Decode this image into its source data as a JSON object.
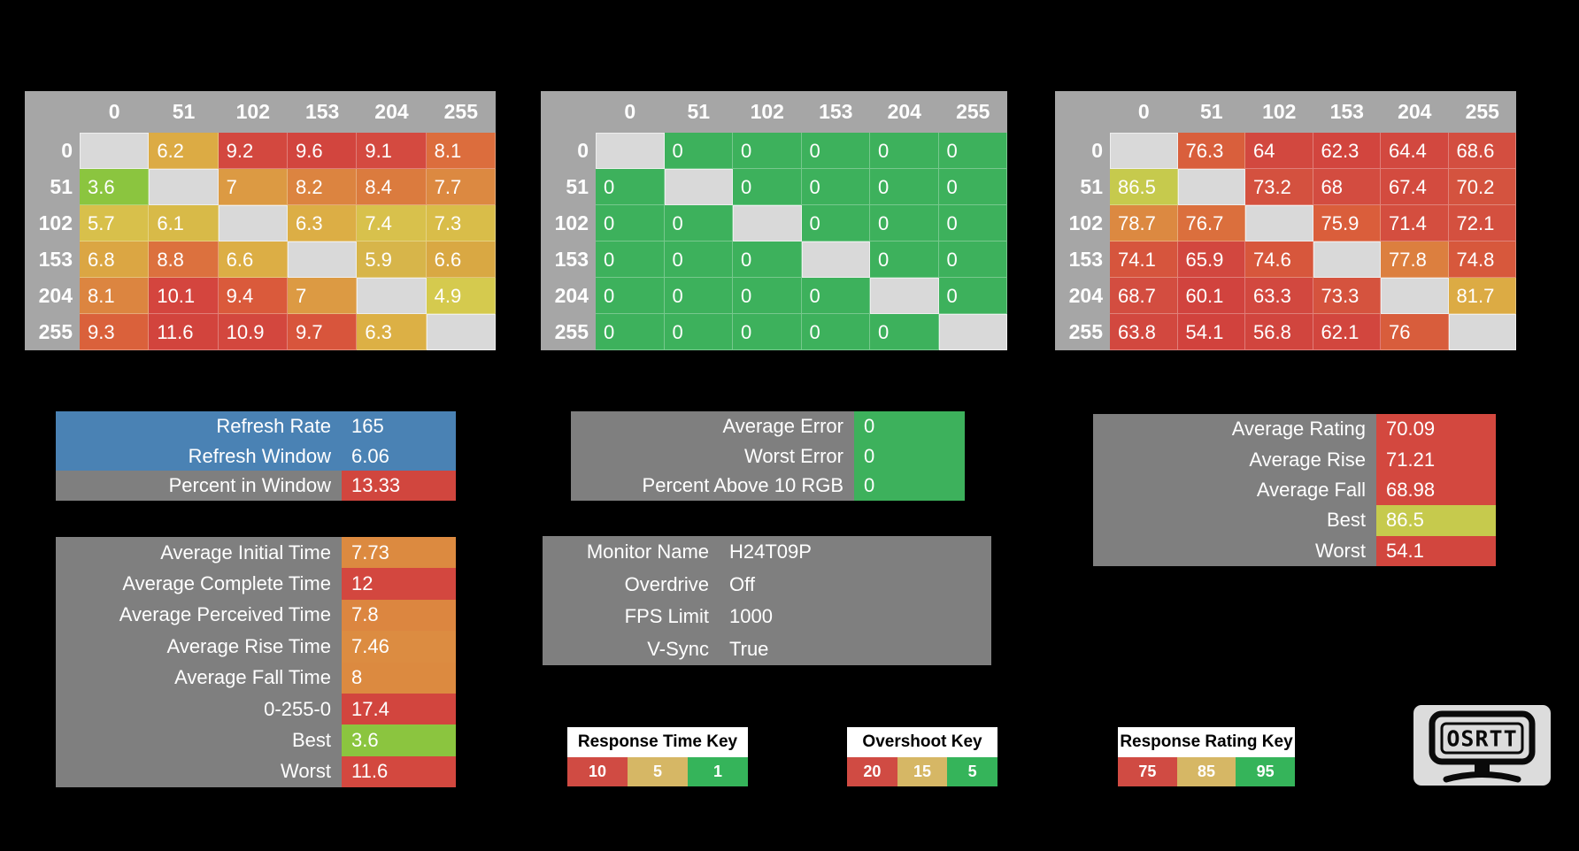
{
  "colors": {
    "background": "#000000",
    "table_surround": "#a6a6a6",
    "diagonal_cell": "#d9d9d9",
    "panel_gray": "#7f7f7f",
    "refresh_blue": "#4a82b4",
    "good_green": "#3db15c",
    "bad_red": "#d1463e",
    "key_red": "#d04b43",
    "key_tan": "#d6b765",
    "key_green": "#35b45a"
  },
  "heatmaps": [
    {
      "id": "response-times",
      "col_headers": [
        "0",
        "51",
        "102",
        "153",
        "204",
        "255"
      ],
      "rows": [
        {
          "label": "0",
          "cells": [
            {
              "v": "",
              "bg": null
            },
            {
              "v": "6.2",
              "bg": "#dcab44"
            },
            {
              "v": "9.2",
              "bg": "#d3483f"
            },
            {
              "v": "9.6",
              "bg": "#d2453e"
            },
            {
              "v": "9.1",
              "bg": "#d44a40"
            },
            {
              "v": "8.1",
              "bg": "#dc6d3d"
            }
          ]
        },
        {
          "label": "51",
          "cells": [
            {
              "v": "3.6",
              "bg": "#8bc53f"
            },
            {
              "v": "",
              "bg": null
            },
            {
              "v": "7",
              "bg": "#dc9a43"
            },
            {
              "v": "8.2",
              "bg": "#dc8440"
            },
            {
              "v": "8.4",
              "bg": "#db7b3e"
            },
            {
              "v": "7.7",
              "bg": "#dc8941"
            }
          ]
        },
        {
          "label": "102",
          "cells": [
            {
              "v": "5.7",
              "bg": "#d8c04b"
            },
            {
              "v": "6.1",
              "bg": "#d8ba48"
            },
            {
              "v": "",
              "bg": null
            },
            {
              "v": "6.3",
              "bg": "#dcae45"
            },
            {
              "v": "7.4",
              "bg": "#d8c14c"
            },
            {
              "v": "7.3",
              "bg": "#d9bd49"
            }
          ]
        },
        {
          "label": "153",
          "cells": [
            {
              "v": "6.8",
              "bg": "#dba643"
            },
            {
              "v": "8.8",
              "bg": "#dc713e"
            },
            {
              "v": "6.6",
              "bg": "#dcae45"
            },
            {
              "v": "",
              "bg": null
            },
            {
              "v": "5.9",
              "bg": "#d7b54a"
            },
            {
              "v": "6.6",
              "bg": "#d9a843"
            }
          ]
        },
        {
          "label": "204",
          "cells": [
            {
              "v": "8.1",
              "bg": "#dc8540"
            },
            {
              "v": "10.1",
              "bg": "#d4453e"
            },
            {
              "v": "9.4",
              "bg": "#da5a3b"
            },
            {
              "v": "7",
              "bg": "#dc9a43"
            },
            {
              "v": "",
              "bg": null
            },
            {
              "v": "4.9",
              "bg": "#d5ca4e"
            }
          ]
        },
        {
          "label": "255",
          "cells": [
            {
              "v": "9.3",
              "bg": "#da613b"
            },
            {
              "v": "11.6",
              "bg": "#d2443d"
            },
            {
              "v": "10.9",
              "bg": "#d3473e"
            },
            {
              "v": "9.7",
              "bg": "#d8553c"
            },
            {
              "v": "6.3",
              "bg": "#dcb045"
            },
            {
              "v": "",
              "bg": null
            }
          ]
        }
      ]
    },
    {
      "id": "overshoot",
      "col_headers": [
        "0",
        "51",
        "102",
        "153",
        "204",
        "255"
      ],
      "rows": [
        {
          "label": "0",
          "cells": [
            {
              "v": "",
              "bg": null
            },
            {
              "v": "0",
              "bg": "#3db15c"
            },
            {
              "v": "0",
              "bg": "#3db15c"
            },
            {
              "v": "0",
              "bg": "#3db15c"
            },
            {
              "v": "0",
              "bg": "#3db15c"
            },
            {
              "v": "0",
              "bg": "#3db15c"
            }
          ]
        },
        {
          "label": "51",
          "cells": [
            {
              "v": "0",
              "bg": "#3db15c"
            },
            {
              "v": "",
              "bg": null
            },
            {
              "v": "0",
              "bg": "#3db15c"
            },
            {
              "v": "0",
              "bg": "#3db15c"
            },
            {
              "v": "0",
              "bg": "#3db15c"
            },
            {
              "v": "0",
              "bg": "#3db15c"
            }
          ]
        },
        {
          "label": "102",
          "cells": [
            {
              "v": "0",
              "bg": "#3db15c"
            },
            {
              "v": "0",
              "bg": "#3db15c"
            },
            {
              "v": "",
              "bg": null
            },
            {
              "v": "0",
              "bg": "#3db15c"
            },
            {
              "v": "0",
              "bg": "#3db15c"
            },
            {
              "v": "0",
              "bg": "#3db15c"
            }
          ]
        },
        {
          "label": "153",
          "cells": [
            {
              "v": "0",
              "bg": "#3db15c"
            },
            {
              "v": "0",
              "bg": "#3db15c"
            },
            {
              "v": "0",
              "bg": "#3db15c"
            },
            {
              "v": "",
              "bg": null
            },
            {
              "v": "0",
              "bg": "#3db15c"
            },
            {
              "v": "0",
              "bg": "#3db15c"
            }
          ]
        },
        {
          "label": "204",
          "cells": [
            {
              "v": "0",
              "bg": "#3db15c"
            },
            {
              "v": "0",
              "bg": "#3db15c"
            },
            {
              "v": "0",
              "bg": "#3db15c"
            },
            {
              "v": "0",
              "bg": "#3db15c"
            },
            {
              "v": "",
              "bg": null
            },
            {
              "v": "0",
              "bg": "#3db15c"
            }
          ]
        },
        {
          "label": "255",
          "cells": [
            {
              "v": "0",
              "bg": "#3db15c"
            },
            {
              "v": "0",
              "bg": "#3db15c"
            },
            {
              "v": "0",
              "bg": "#3db15c"
            },
            {
              "v": "0",
              "bg": "#3db15c"
            },
            {
              "v": "0",
              "bg": "#3db15c"
            },
            {
              "v": "",
              "bg": null
            }
          ]
        }
      ]
    },
    {
      "id": "response-rating",
      "col_headers": [
        "0",
        "51",
        "102",
        "153",
        "204",
        "255"
      ],
      "rows": [
        {
          "label": "0",
          "cells": [
            {
              "v": "",
              "bg": null
            },
            {
              "v": "76.3",
              "bg": "#d95f3c"
            },
            {
              "v": "64",
              "bg": "#d2483f"
            },
            {
              "v": "62.3",
              "bg": "#d2453e"
            },
            {
              "v": "64.4",
              "bg": "#d2483f"
            },
            {
              "v": "68.6",
              "bg": "#d34e40"
            }
          ]
        },
        {
          "label": "51",
          "cells": [
            {
              "v": "86.5",
              "bg": "#c6ca4d"
            },
            {
              "v": "",
              "bg": null
            },
            {
              "v": "73.2",
              "bg": "#d4513f"
            },
            {
              "v": "68",
              "bg": "#d34c40"
            },
            {
              "v": "67.4",
              "bg": "#d34b3f"
            },
            {
              "v": "70.2",
              "bg": "#d4533f"
            }
          ]
        },
        {
          "label": "102",
          "cells": [
            {
              "v": "78.7",
              "bg": "#dc8941"
            },
            {
              "v": "76.7",
              "bg": "#db6f3d"
            },
            {
              "v": "",
              "bg": null
            },
            {
              "v": "75.9",
              "bg": "#da5e3b"
            },
            {
              "v": "71.4",
              "bg": "#d44e3f"
            },
            {
              "v": "72.1",
              "bg": "#d4503f"
            }
          ]
        },
        {
          "label": "153",
          "cells": [
            {
              "v": "74.1",
              "bg": "#d6553d"
            },
            {
              "v": "65.9",
              "bg": "#d2473f"
            },
            {
              "v": "74.6",
              "bg": "#d7573c"
            },
            {
              "v": "",
              "bg": null
            },
            {
              "v": "77.8",
              "bg": "#dc7f3f"
            },
            {
              "v": "74.8",
              "bg": "#d7583c"
            }
          ]
        },
        {
          "label": "204",
          "cells": [
            {
              "v": "68.7",
              "bg": "#d34d40"
            },
            {
              "v": "60.1",
              "bg": "#d1433e"
            },
            {
              "v": "63.3",
              "bg": "#d2483f"
            },
            {
              "v": "73.3",
              "bg": "#d5533e"
            },
            {
              "v": "",
              "bg": null
            },
            {
              "v": "81.7",
              "bg": "#dcab44"
            }
          ]
        },
        {
          "label": "255",
          "cells": [
            {
              "v": "63.8",
              "bg": "#d2483f"
            },
            {
              "v": "54.1",
              "bg": "#d1423d"
            },
            {
              "v": "56.8",
              "bg": "#d1453e"
            },
            {
              "v": "62.1",
              "bg": "#d2463e"
            },
            {
              "v": "76",
              "bg": "#d85d3c"
            },
            {
              "v": "",
              "bg": null
            }
          ]
        }
      ]
    }
  ],
  "panels": [
    {
      "id": "panel-refresh",
      "rows": [
        {
          "label": "Refresh Rate",
          "value": "165",
          "row_bg": "#4a82b4",
          "value_bg": null
        },
        {
          "label": "Refresh Window",
          "value": "6.06",
          "row_bg": "#4a82b4",
          "value_bg": null
        },
        {
          "label": "Percent in Window",
          "value": "13.33",
          "row_bg": "#7f7f7f",
          "value_bg": "#d1463e"
        }
      ]
    },
    {
      "id": "panel-error",
      "rows": [
        {
          "label": "Average Error",
          "value": "0",
          "row_bg": "#7f7f7f",
          "value_bg": "#3db15c"
        },
        {
          "label": "Worst Error",
          "value": "0",
          "row_bg": "#7f7f7f",
          "value_bg": "#3db15c"
        },
        {
          "label": "Percent Above 10 RGB",
          "value": "0",
          "row_bg": "#7f7f7f",
          "value_bg": "#3db15c"
        }
      ]
    },
    {
      "id": "panel-rating",
      "rows": [
        {
          "label": "Average Rating",
          "value": "70.09",
          "row_bg": "#7f7f7f",
          "value_bg": "#d3483f"
        },
        {
          "label": "Average Rise",
          "value": "71.21",
          "row_bg": "#7f7f7f",
          "value_bg": "#d3483f"
        },
        {
          "label": "Average Fall",
          "value": "68.98",
          "row_bg": "#7f7f7f",
          "value_bg": "#d3483f"
        },
        {
          "label": "Best",
          "value": "86.5",
          "row_bg": "#7f7f7f",
          "value_bg": "#c6ca4d"
        },
        {
          "label": "Worst",
          "value": "54.1",
          "row_bg": "#7f7f7f",
          "value_bg": "#d2463e"
        }
      ]
    },
    {
      "id": "panel-times",
      "rows": [
        {
          "label": "Average Initial Time",
          "value": "7.73",
          "row_bg": "#7f7f7f",
          "value_bg": "#dc8a40"
        },
        {
          "label": "Average Complete Time",
          "value": "12",
          "row_bg": "#7f7f7f",
          "value_bg": "#d3473f"
        },
        {
          "label": "Average Perceived Time",
          "value": "7.8",
          "row_bg": "#7f7f7f",
          "value_bg": "#dc8640"
        },
        {
          "label": "Average Rise Time",
          "value": "7.46",
          "row_bg": "#7f7f7f",
          "value_bg": "#dc8c41"
        },
        {
          "label": "Average Fall Time",
          "value": "8",
          "row_bg": "#7f7f7f",
          "value_bg": "#dc8a40"
        },
        {
          "label": "0-255-0",
          "value": "17.4",
          "row_bg": "#7f7f7f",
          "value_bg": "#d2453e"
        },
        {
          "label": "Best",
          "value": "3.6",
          "row_bg": "#7f7f7f",
          "value_bg": "#8bc53f"
        },
        {
          "label": "Worst",
          "value": "11.6",
          "row_bg": "#7f7f7f",
          "value_bg": "#d3483f"
        }
      ]
    },
    {
      "id": "panel-monitor",
      "rows": [
        {
          "label": "Monitor Name",
          "value": "H24T09P",
          "row_bg": "#7f7f7f",
          "value_bg": null
        },
        {
          "label": "Overdrive",
          "value": "Off",
          "row_bg": "#7f7f7f",
          "value_bg": null
        },
        {
          "label": "FPS Limit",
          "value": "1000",
          "row_bg": "#7f7f7f",
          "value_bg": null
        },
        {
          "label": "V-Sync",
          "value": "True",
          "row_bg": "#7f7f7f",
          "value_bg": null
        }
      ]
    }
  ],
  "keys": [
    {
      "id": "key-response-time",
      "title": "Response Time Key",
      "cells": [
        {
          "label": "10",
          "color": "#d04b43"
        },
        {
          "label": "5",
          "color": "#d6b765"
        },
        {
          "label": "1",
          "color": "#35b45a"
        }
      ]
    },
    {
      "id": "key-overshoot",
      "title": "Overshoot Key",
      "cells": [
        {
          "label": "20",
          "color": "#d04b43"
        },
        {
          "label": "15",
          "color": "#d6b765"
        },
        {
          "label": "5",
          "color": "#35b45a"
        }
      ]
    },
    {
      "id": "key-rating",
      "title": "Response Rating Key",
      "cells": [
        {
          "label": "75",
          "color": "#d04b43"
        },
        {
          "label": "85",
          "color": "#d6b765"
        },
        {
          "label": "95",
          "color": "#35b45a"
        }
      ]
    }
  ],
  "logo": {
    "text": "OSRTT"
  }
}
